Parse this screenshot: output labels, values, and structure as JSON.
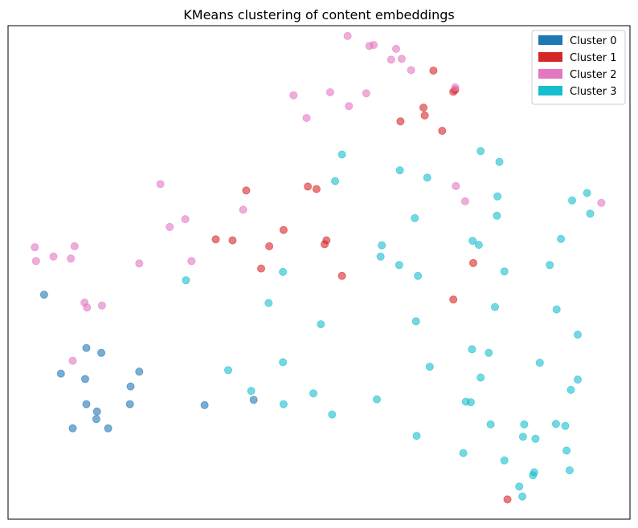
{
  "chart_data": {
    "type": "scatter",
    "title": "KMeans clustering of content embeddings",
    "xlabel": "",
    "ylabel": "",
    "xlim": [
      0,
      100
    ],
    "ylim": [
      0,
      100
    ],
    "grid": false,
    "axis_ticks": false,
    "legend_position": "top-right",
    "point_alpha": 0.6,
    "series": [
      {
        "name": "Cluster 0",
        "color": "#1f77b4",
        "points": [
          [
            5.8,
            45.5
          ],
          [
            12.6,
            34.7
          ],
          [
            15.0,
            33.7
          ],
          [
            8.5,
            29.5
          ],
          [
            12.4,
            28.4
          ],
          [
            21.1,
            29.9
          ],
          [
            19.7,
            26.9
          ],
          [
            12.6,
            23.3
          ],
          [
            19.6,
            23.3
          ],
          [
            14.3,
            21.8
          ],
          [
            14.2,
            20.3
          ],
          [
            10.4,
            18.4
          ],
          [
            16.1,
            18.4
          ],
          [
            31.6,
            23.1
          ],
          [
            39.5,
            24.2
          ]
        ]
      },
      {
        "name": "Cluster 1",
        "color": "#d62728",
        "points": [
          [
            68.4,
            90.9
          ],
          [
            71.9,
            87.0
          ],
          [
            71.6,
            86.6
          ],
          [
            66.8,
            83.4
          ],
          [
            67.0,
            81.8
          ],
          [
            63.1,
            80.6
          ],
          [
            69.8,
            78.7
          ],
          [
            48.2,
            67.4
          ],
          [
            49.6,
            66.9
          ],
          [
            38.3,
            66.6
          ],
          [
            44.3,
            58.6
          ],
          [
            33.4,
            56.7
          ],
          [
            36.1,
            56.5
          ],
          [
            51.2,
            56.5
          ],
          [
            42.0,
            55.3
          ],
          [
            50.9,
            55.7
          ],
          [
            40.7,
            50.8
          ],
          [
            53.7,
            49.3
          ],
          [
            74.8,
            51.9
          ],
          [
            71.6,
            44.5
          ],
          [
            80.3,
            4.0
          ]
        ]
      },
      {
        "name": "Cluster 2",
        "color": "#e377c2",
        "points": [
          [
            54.6,
            97.9
          ],
          [
            58.1,
            95.9
          ],
          [
            58.8,
            96.1
          ],
          [
            62.4,
            95.3
          ],
          [
            61.6,
            93.1
          ],
          [
            63.3,
            93.3
          ],
          [
            64.8,
            91.0
          ],
          [
            71.9,
            87.5
          ],
          [
            45.9,
            85.9
          ],
          [
            51.8,
            86.5
          ],
          [
            57.6,
            86.3
          ],
          [
            54.8,
            83.7
          ],
          [
            48.0,
            81.3
          ],
          [
            24.5,
            67.9
          ],
          [
            72.0,
            67.5
          ],
          [
            73.5,
            64.4
          ],
          [
            95.4,
            64.1
          ],
          [
            37.8,
            62.7
          ],
          [
            28.5,
            60.8
          ],
          [
            26.0,
            59.2
          ],
          [
            4.3,
            55.1
          ],
          [
            10.7,
            55.3
          ],
          [
            7.3,
            53.2
          ],
          [
            10.1,
            52.8
          ],
          [
            4.5,
            52.3
          ],
          [
            21.1,
            51.8
          ],
          [
            29.5,
            52.3
          ],
          [
            12.3,
            43.9
          ],
          [
            12.7,
            42.9
          ],
          [
            15.1,
            43.3
          ],
          [
            10.4,
            32.1
          ]
        ]
      },
      {
        "name": "Cluster 3",
        "color": "#17becf",
        "points": [
          [
            53.7,
            73.9
          ],
          [
            76.0,
            74.6
          ],
          [
            79.0,
            72.4
          ],
          [
            63.0,
            70.7
          ],
          [
            67.4,
            69.2
          ],
          [
            52.6,
            68.5
          ],
          [
            78.7,
            65.4
          ],
          [
            90.7,
            64.6
          ],
          [
            93.1,
            66.1
          ],
          [
            93.6,
            61.9
          ],
          [
            78.6,
            61.5
          ],
          [
            65.4,
            61.0
          ],
          [
            88.9,
            56.8
          ],
          [
            74.7,
            56.4
          ],
          [
            75.7,
            55.6
          ],
          [
            60.1,
            55.5
          ],
          [
            59.9,
            53.2
          ],
          [
            62.9,
            51.5
          ],
          [
            65.9,
            49.3
          ],
          [
            79.8,
            50.2
          ],
          [
            87.1,
            51.5
          ],
          [
            44.2,
            50.1
          ],
          [
            28.6,
            48.4
          ],
          [
            41.9,
            43.8
          ],
          [
            78.3,
            43.0
          ],
          [
            88.2,
            42.5
          ],
          [
            50.3,
            39.5
          ],
          [
            65.6,
            40.1
          ],
          [
            91.6,
            37.4
          ],
          [
            74.6,
            34.4
          ],
          [
            77.3,
            33.7
          ],
          [
            44.2,
            31.8
          ],
          [
            67.8,
            30.9
          ],
          [
            85.5,
            31.7
          ],
          [
            35.4,
            30.2
          ],
          [
            76.0,
            28.7
          ],
          [
            91.6,
            28.3
          ],
          [
            90.5,
            26.2
          ],
          [
            39.1,
            26.0
          ],
          [
            49.1,
            25.5
          ],
          [
            59.3,
            24.3
          ],
          [
            73.6,
            23.8
          ],
          [
            74.4,
            23.7
          ],
          [
            44.3,
            23.3
          ],
          [
            52.1,
            21.2
          ],
          [
            77.6,
            19.2
          ],
          [
            83.0,
            19.2
          ],
          [
            88.1,
            19.3
          ],
          [
            89.6,
            18.9
          ],
          [
            65.7,
            16.9
          ],
          [
            82.8,
            16.7
          ],
          [
            84.8,
            16.3
          ],
          [
            89.8,
            13.9
          ],
          [
            73.2,
            13.4
          ],
          [
            79.8,
            11.9
          ],
          [
            84.6,
            9.5
          ],
          [
            90.3,
            9.9
          ],
          [
            84.4,
            8.9
          ],
          [
            82.2,
            6.6
          ],
          [
            82.7,
            4.6
          ]
        ]
      }
    ]
  }
}
